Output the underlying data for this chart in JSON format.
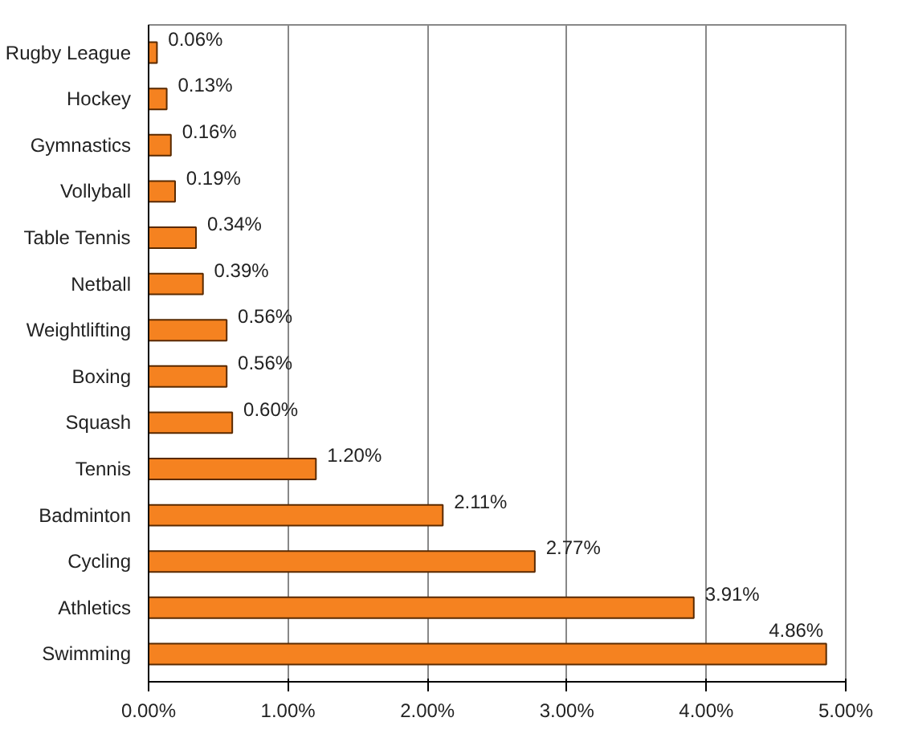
{
  "chart_data": {
    "type": "bar",
    "orientation": "horizontal",
    "categories": [
      "Rugby League",
      "Hockey",
      "Gymnastics",
      "Vollyball",
      "Table Tennis",
      "Netball",
      "Weightlifting",
      "Boxing",
      "Squash",
      "Tennis",
      "Badminton",
      "Cycling",
      "Athletics",
      "Swimming"
    ],
    "values": [
      0.06,
      0.13,
      0.16,
      0.19,
      0.34,
      0.39,
      0.56,
      0.56,
      0.6,
      1.2,
      2.11,
      2.77,
      3.91,
      4.86
    ],
    "value_labels": [
      "0.06%",
      "0.13%",
      "0.16%",
      "0.19%",
      "0.34%",
      "0.39%",
      "0.56%",
      "0.56%",
      "0.60%",
      "1.20%",
      "2.11%",
      "2.77%",
      "3.91%",
      "4.86%"
    ],
    "color": "#f58220",
    "xlim": [
      0,
      5
    ],
    "xticks": [
      {
        "value": 0,
        "label": "0.00%"
      },
      {
        "value": 1,
        "label": "1.00%"
      },
      {
        "value": 2,
        "label": "2.00%"
      },
      {
        "value": 3,
        "label": "3.00%"
      },
      {
        "value": 4,
        "label": "4.00%"
      },
      {
        "value": 5,
        "label": "5.00%"
      }
    ],
    "grid": "x"
  }
}
